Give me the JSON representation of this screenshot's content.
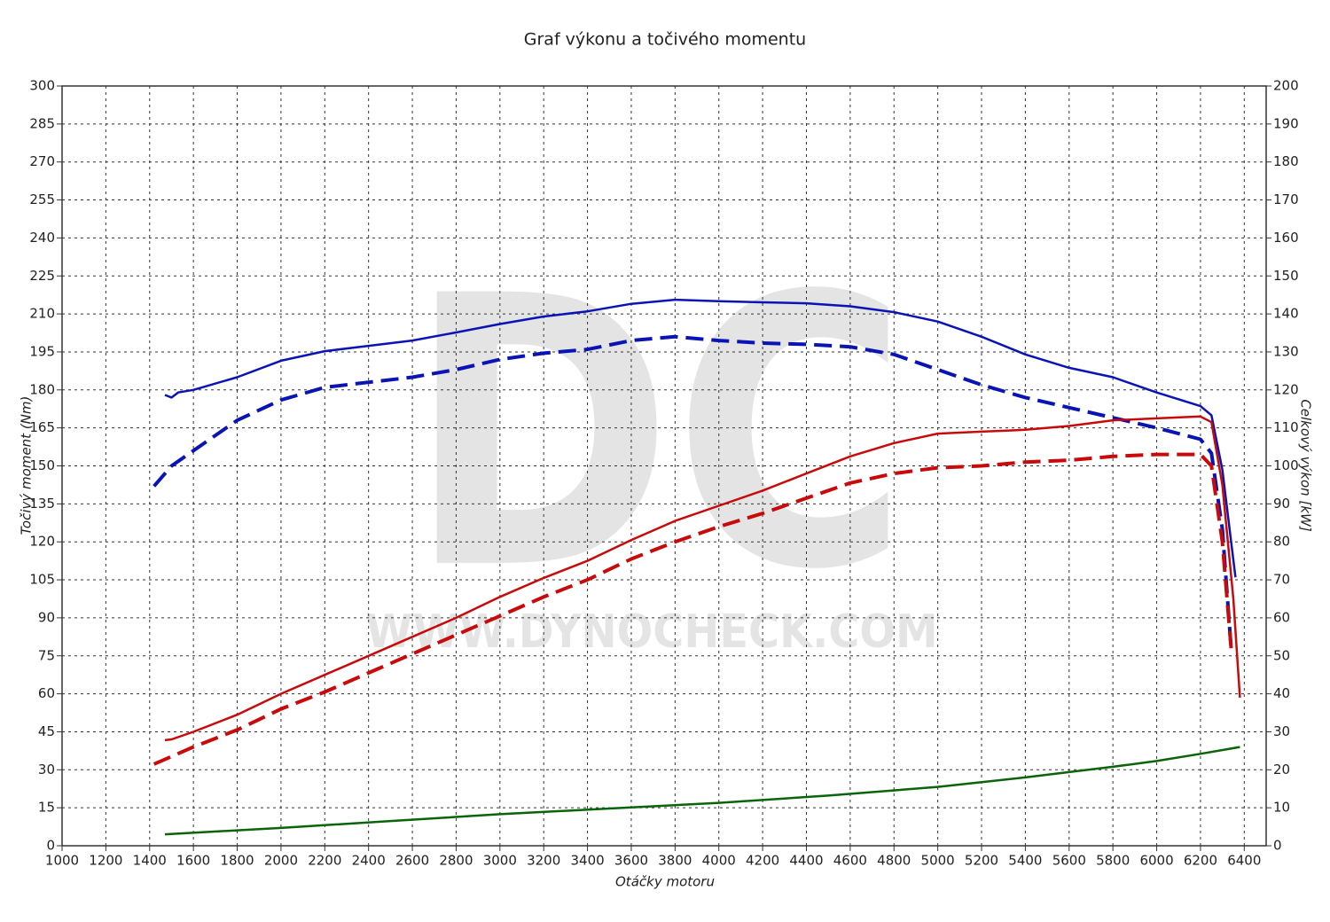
{
  "chart_data": {
    "type": "line",
    "title": "Graf výkonu a točivého momentu",
    "x_label": "Otáčky motoru",
    "y_label": "Točivý moment (Nm)",
    "y2_label": "Celkový výkon [kW]",
    "watermark": "DC",
    "watermark_url": "WWW.DYNOCHECK.COM",
    "grid": true,
    "xlim": [
      1000,
      6500
    ],
    "xticks": [
      1000,
      1200,
      1400,
      1600,
      1800,
      2000,
      2200,
      2400,
      2600,
      2800,
      3000,
      3200,
      3400,
      3600,
      3800,
      4000,
      4200,
      4400,
      4600,
      4800,
      5000,
      5200,
      5400,
      5600,
      5800,
      6000,
      6200,
      6400
    ],
    "ylim": [
      0,
      300
    ],
    "yticks": [
      0,
      15,
      30,
      45,
      60,
      75,
      90,
      105,
      120,
      135,
      150,
      165,
      180,
      195,
      210,
      225,
      240,
      255,
      270,
      285,
      300
    ],
    "y2lim": [
      0,
      200
    ],
    "y2ticks": [
      0,
      10,
      20,
      30,
      40,
      50,
      60,
      70,
      80,
      90,
      100,
      110,
      120,
      130,
      140,
      150,
      160,
      170,
      180,
      190,
      200
    ],
    "series": [
      {
        "color": "#0a14b4",
        "dashed": false,
        "axis": "y",
        "x": [
          1470,
          1500,
          1530,
          1600,
          1800,
          2000,
          2200,
          2400,
          2600,
          2800,
          3000,
          3200,
          3400,
          3600,
          3800,
          4000,
          4200,
          4400,
          4600,
          4800,
          5000,
          5200,
          5400,
          5600,
          5800,
          6000,
          6200,
          6250,
          6300,
          6340,
          6360
        ],
        "values": [
          178,
          177,
          179,
          180,
          185,
          191.5,
          195.3,
          197.4,
          199.5,
          202.7,
          206,
          209,
          211,
          214,
          215.6,
          215,
          214.6,
          214.2,
          213,
          210.7,
          207,
          201,
          194,
          188.7,
          185,
          179,
          173.6,
          170,
          148.5,
          120,
          106
        ]
      },
      {
        "color": "#0a14b4",
        "dashed": true,
        "axis": "y",
        "x": [
          1420,
          1500,
          1600,
          1800,
          2000,
          2200,
          2400,
          2600,
          2800,
          3000,
          3200,
          3400,
          3600,
          3800,
          4000,
          4200,
          4400,
          4600,
          4800,
          5000,
          5200,
          5400,
          5600,
          5800,
          6000,
          6200,
          6250,
          6300,
          6340
        ],
        "values": [
          142,
          150,
          156,
          168,
          176,
          181,
          183,
          185,
          188,
          192,
          194.5,
          196,
          199.5,
          201,
          199.5,
          198.5,
          198,
          197,
          194,
          188,
          182,
          177,
          173,
          169,
          165,
          160.5,
          155,
          125,
          78
        ]
      },
      {
        "color": "#c80a0a",
        "dashed": false,
        "axis": "y2",
        "x": [
          1470,
          1500,
          1600,
          1800,
          2000,
          2200,
          2400,
          2600,
          2800,
          3000,
          3200,
          3400,
          3600,
          3800,
          4000,
          4200,
          4400,
          4600,
          4800,
          5000,
          5200,
          5400,
          5600,
          5800,
          6000,
          6200,
          6250,
          6300,
          6350,
          6380
        ],
        "values": [
          27.8,
          28,
          30,
          34.5,
          40,
          45,
          50,
          55,
          60,
          65.5,
          70.5,
          75,
          80.5,
          85.5,
          89.5,
          93.5,
          98,
          102.5,
          106,
          108.5,
          109,
          109.5,
          110.5,
          112,
          112.5,
          113,
          111.5,
          95,
          65,
          39
        ]
      },
      {
        "color": "#c80a0a",
        "dashed": true,
        "axis": "y2",
        "x": [
          1420,
          1500,
          1600,
          1800,
          2000,
          2200,
          2400,
          2600,
          2800,
          3000,
          3200,
          3400,
          3600,
          3800,
          4000,
          4200,
          4400,
          4600,
          4800,
          5000,
          5200,
          5400,
          5600,
          5800,
          6000,
          6200,
          6250,
          6300,
          6340
        ],
        "values": [
          21.5,
          23.5,
          26,
          30.5,
          36,
          40.5,
          45.5,
          50.5,
          55.5,
          60.5,
          65.5,
          70,
          75.5,
          80,
          84,
          87.5,
          91.5,
          95.5,
          98,
          99.5,
          100,
          101,
          101.5,
          102.5,
          103,
          103,
          100,
          80,
          52
        ]
      },
      {
        "color": "#0a640a",
        "dashed": false,
        "axis": "y2",
        "x": [
          1470,
          2000,
          2500,
          3000,
          3500,
          4000,
          4500,
          5000,
          5400,
          5800,
          6000,
          6200,
          6380
        ],
        "values": [
          3,
          4.7,
          6.5,
          8.3,
          9.8,
          11.3,
          13.2,
          15.5,
          18,
          20.8,
          22.3,
          24.2,
          26
        ]
      }
    ]
  }
}
